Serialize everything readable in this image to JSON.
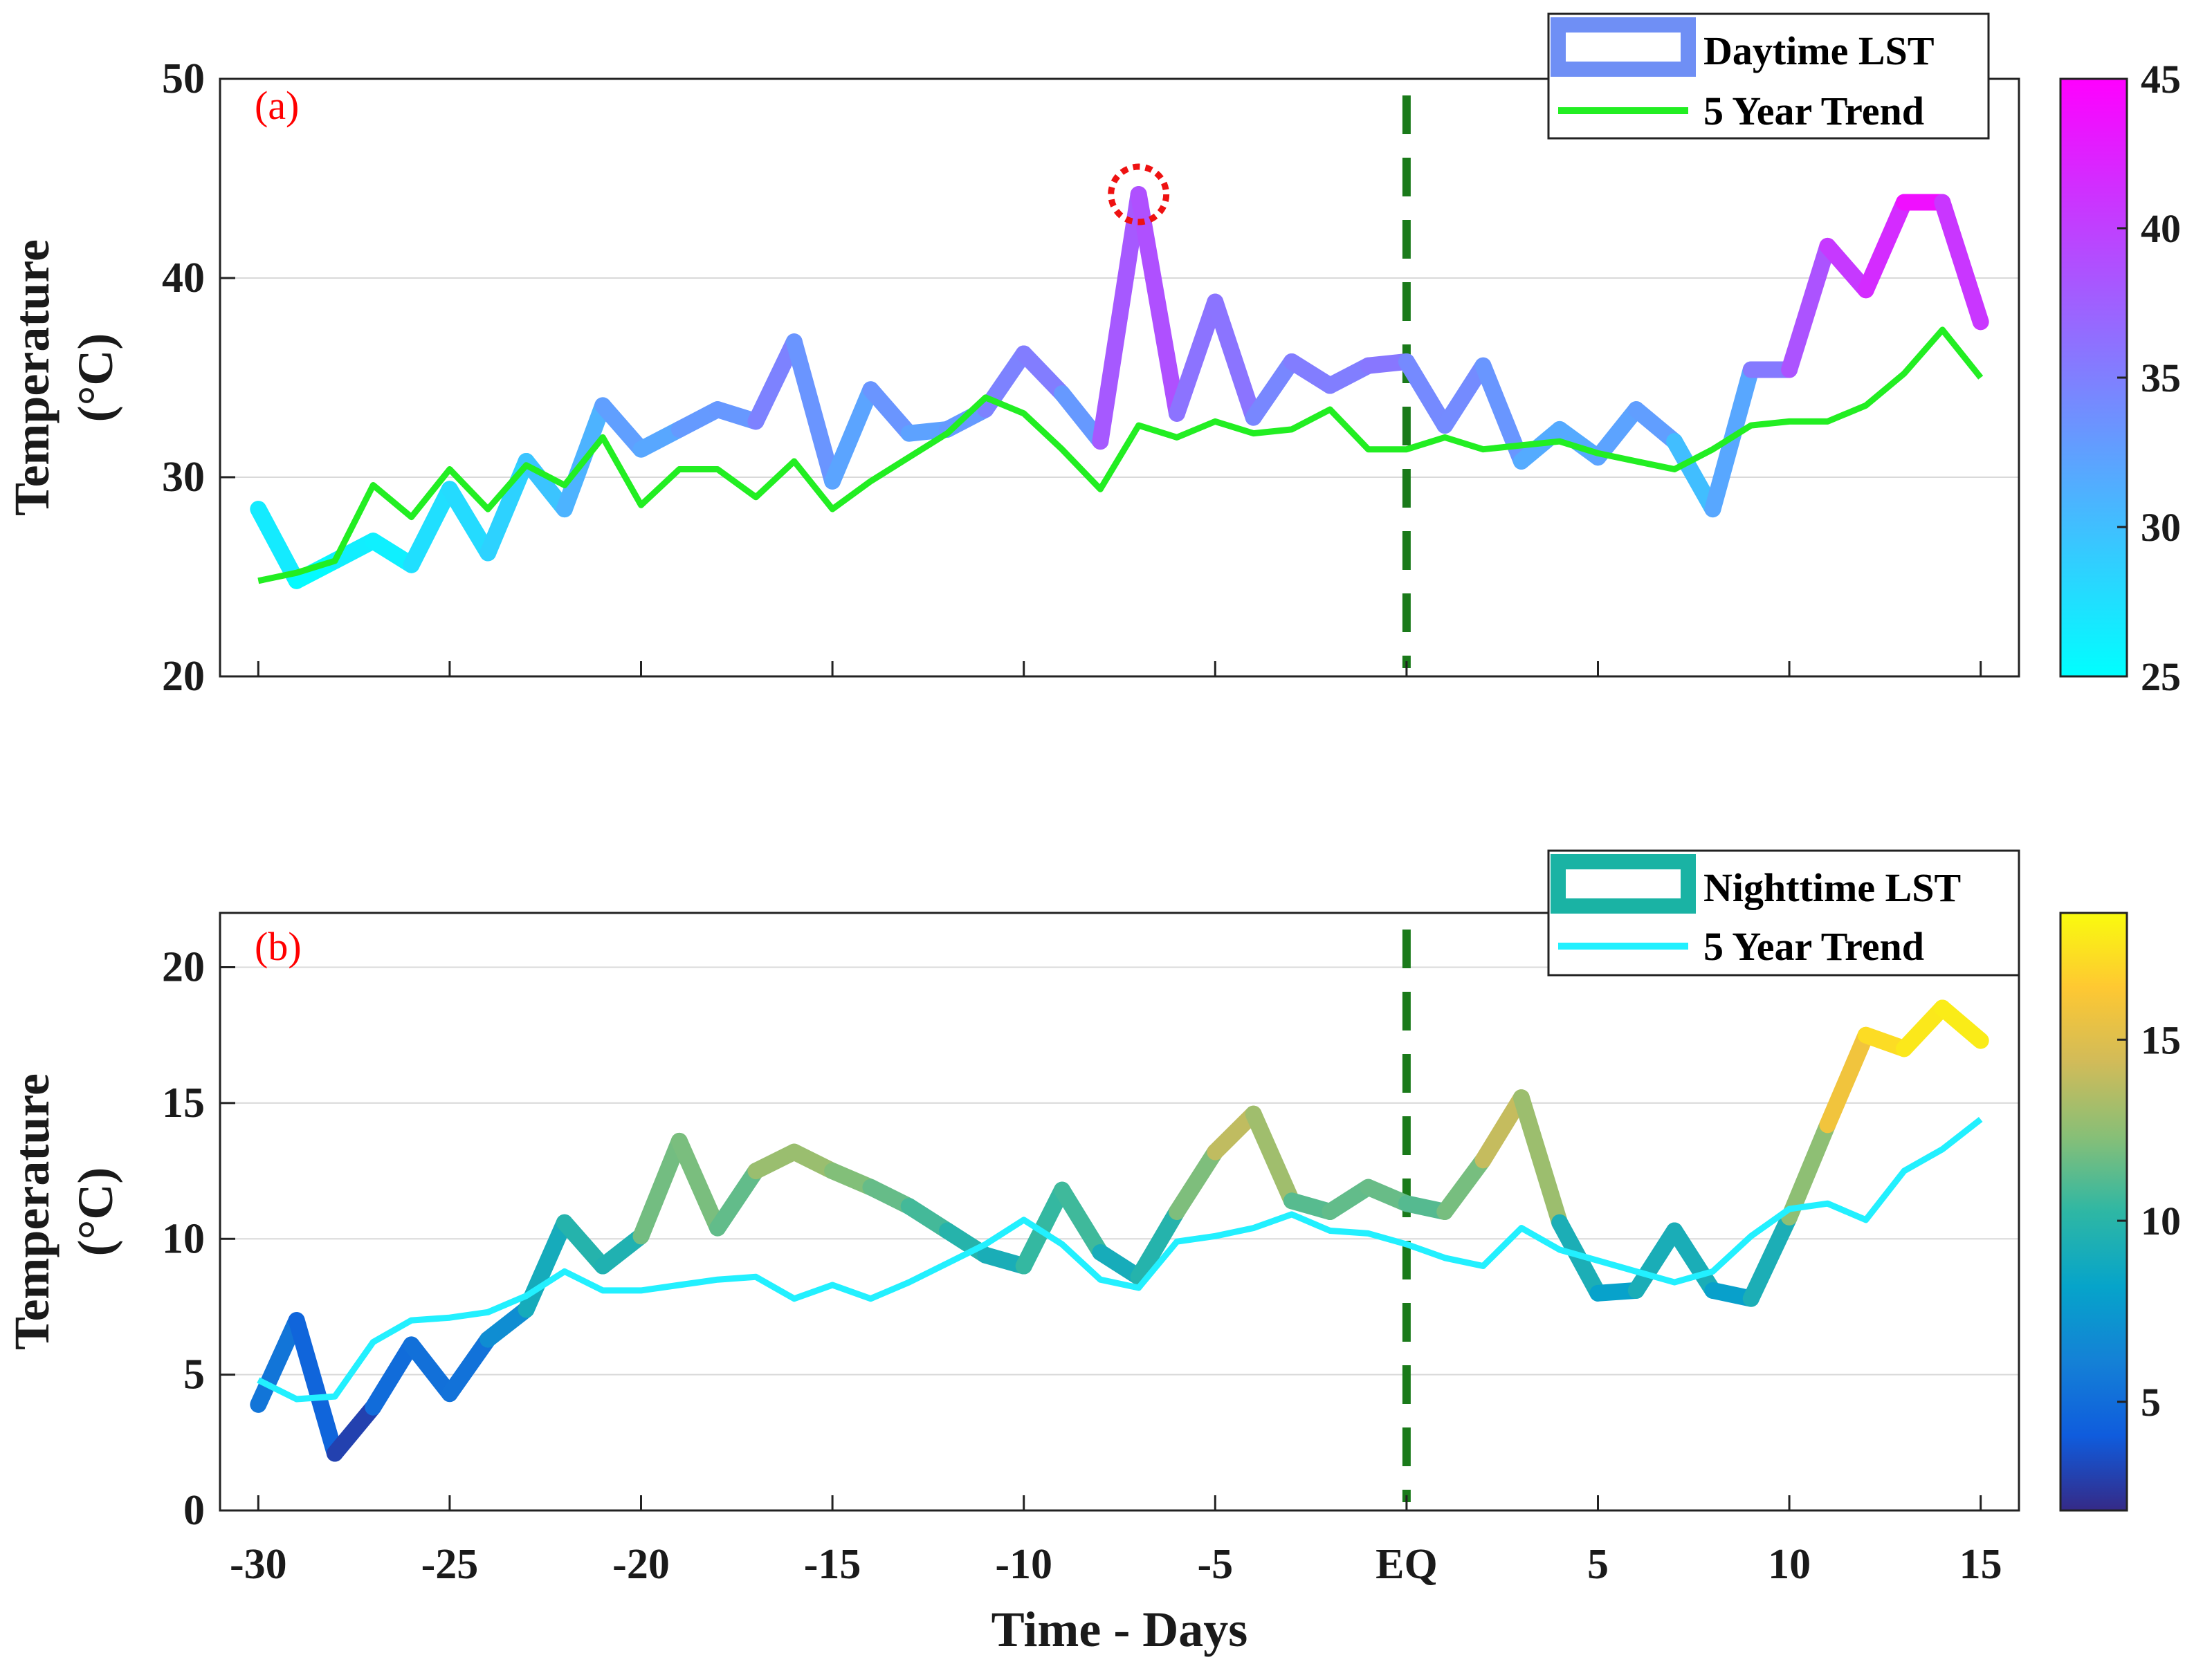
{
  "x_axis": {
    "label": "Time - Days",
    "ticks": [
      -30,
      -25,
      -20,
      -15,
      -10,
      -5,
      0,
      5,
      10,
      15
    ],
    "tick_labels": [
      "-30",
      "-25",
      "-20",
      "-15",
      "-10",
      "-5",
      "EQ",
      "5",
      "10",
      "15"
    ],
    "range": [
      -31,
      16
    ]
  },
  "eq_marker": {
    "x": 0,
    "color": "#1a7a1a"
  },
  "chart_data": [
    {
      "type": "line",
      "panel_label": "(a)",
      "ylabel_line1": "Temperature",
      "ylabel_line2": "(°C)",
      "ylim": [
        20,
        50
      ],
      "yticks": [
        20,
        30,
        40,
        50
      ],
      "grid": "horizontal",
      "legend_position": "top-right",
      "x": [
        -30,
        -29,
        -28,
        -27,
        -26,
        -25,
        -24,
        -23,
        -22,
        -21,
        -20,
        -19,
        -18,
        -17,
        -16,
        -15,
        -14,
        -13,
        -12,
        -11,
        -10,
        -9,
        -8,
        -7,
        -6,
        -5,
        -4,
        -3,
        -2,
        -1,
        0,
        1,
        2,
        3,
        4,
        5,
        6,
        7,
        8,
        9,
        10,
        11,
        12,
        13,
        14,
        15
      ],
      "series": [
        {
          "name": "Daytime LST",
          "style": "thick-colormapped",
          "values": [
            28.4,
            24.8,
            25.8,
            26.8,
            25.6,
            29.4,
            26.2,
            30.8,
            28.4,
            33.6,
            31.4,
            32.4,
            33.4,
            32.8,
            36.8,
            29.8,
            34.4,
            32.2,
            32.4,
            33.4,
            36.2,
            34.2,
            31.8,
            44.2,
            33.2,
            38.8,
            33.0,
            35.8,
            34.6,
            35.6,
            35.8,
            32.6,
            35.6,
            30.8,
            32.4,
            31.0,
            33.4,
            31.8,
            28.4,
            35.4,
            35.4,
            41.6,
            39.4,
            43.8,
            43.8,
            37.8
          ]
        },
        {
          "name": "5 Year Trend",
          "color": "#22ee22",
          "values": [
            24.8,
            25.2,
            25.8,
            29.6,
            28.0,
            30.4,
            28.4,
            30.6,
            29.6,
            32.0,
            28.6,
            30.4,
            30.4,
            29.0,
            30.8,
            28.4,
            29.8,
            31.0,
            32.2,
            34.0,
            33.2,
            31.4,
            29.4,
            32.6,
            32.0,
            32.8,
            32.2,
            32.4,
            33.4,
            31.4,
            31.4,
            32.0,
            31.4,
            31.6,
            31.8,
            31.2,
            30.8,
            30.4,
            31.4,
            32.6,
            32.8,
            32.8,
            33.6,
            35.2,
            37.4,
            35.0
          ]
        }
      ],
      "colorbar": {
        "ticks": [
          25,
          30,
          35,
          40,
          45
        ],
        "range": [
          25,
          45
        ],
        "colormap": "cool"
      },
      "annotation": {
        "type": "dashed-circle",
        "x": -7,
        "y": 44.2,
        "color": "#ee1111"
      }
    },
    {
      "type": "line",
      "panel_label": "(b)",
      "ylabel_line1": "Temperature",
      "ylabel_line2": "(°C)",
      "ylim": [
        0,
        22
      ],
      "yticks": [
        0,
        5,
        10,
        15,
        20
      ],
      "grid": "horizontal",
      "legend_position": "top-right",
      "x": [
        -30,
        -29,
        -28,
        -27,
        -26,
        -25,
        -24,
        -23,
        -22,
        -21,
        -20,
        -19,
        -18,
        -17,
        -16,
        -15,
        -14,
        -13,
        -12,
        -11,
        -10,
        -9,
        -8,
        -7,
        -6,
        -5,
        -4,
        -3,
        -2,
        -1,
        0,
        1,
        2,
        3,
        4,
        5,
        6,
        7,
        8,
        9,
        10,
        11,
        12,
        13,
        14,
        15
      ],
      "series": [
        {
          "name": "Nighttime LST",
          "style": "thick-colormapped",
          "values": [
            3.9,
            7.0,
            2.1,
            3.8,
            6.1,
            4.3,
            6.3,
            7.4,
            10.6,
            9.0,
            10.1,
            13.6,
            10.4,
            12.5,
            13.2,
            12.5,
            11.9,
            11.2,
            10.3,
            9.4,
            9.0,
            11.8,
            9.5,
            8.6,
            11.0,
            13.2,
            14.6,
            11.4,
            11.0,
            11.9,
            11.3,
            11.0,
            12.9,
            15.2,
            10.6,
            8.0,
            8.1,
            10.3,
            8.1,
            7.8,
            10.8,
            14.2,
            17.5,
            17.0,
            18.5,
            17.3
          ]
        },
        {
          "name": "5 Year Trend",
          "color": "#22f0ff",
          "values": [
            4.8,
            4.1,
            4.2,
            6.2,
            7.0,
            7.1,
            7.3,
            7.9,
            8.8,
            8.1,
            8.1,
            8.3,
            8.5,
            8.6,
            7.8,
            8.3,
            7.8,
            8.4,
            9.1,
            9.8,
            10.7,
            9.8,
            8.5,
            8.2,
            9.9,
            10.1,
            10.4,
            10.9,
            10.3,
            10.2,
            9.8,
            9.3,
            9.0,
            10.4,
            9.6,
            9.2,
            8.8,
            8.4,
            8.8,
            10.1,
            11.1,
            11.3,
            10.7,
            12.5,
            13.3,
            14.4
          ]
        }
      ],
      "colorbar": {
        "ticks": [
          5,
          10,
          15
        ],
        "range": [
          2,
          18.5
        ],
        "colormap": "parula"
      }
    }
  ]
}
